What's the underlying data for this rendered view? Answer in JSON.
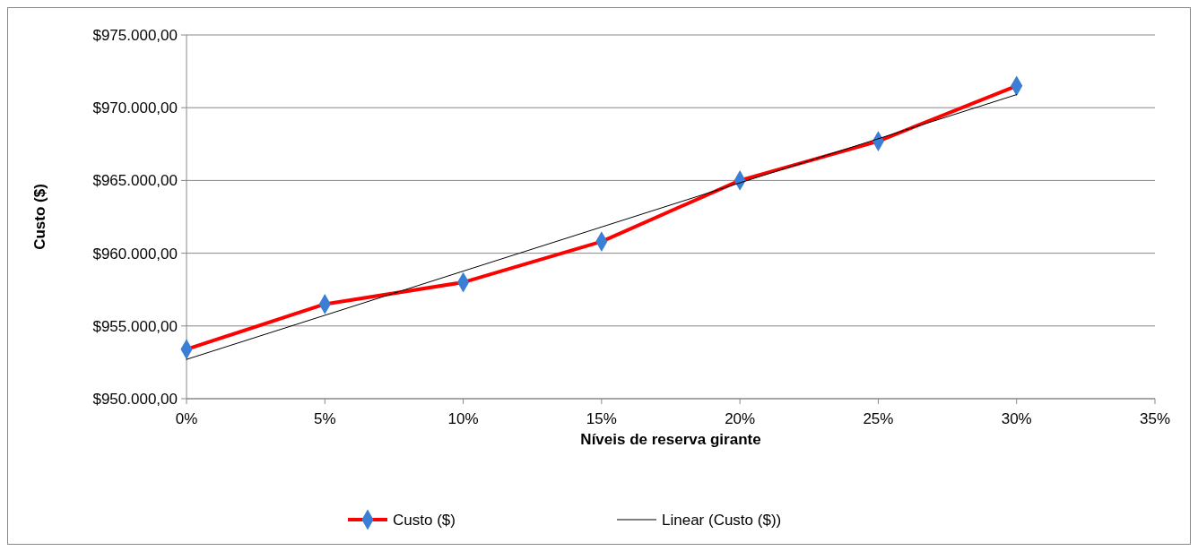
{
  "chart_data": {
    "type": "line",
    "xlabel": "Níveis de reserva girante",
    "ylabel": "Custo ($)",
    "x": [
      0,
      5,
      10,
      15,
      20,
      25,
      30
    ],
    "xlim": [
      0,
      35
    ],
    "xticks": [
      {
        "value": 0,
        "label": "0%"
      },
      {
        "value": 5,
        "label": "5%"
      },
      {
        "value": 10,
        "label": "10%"
      },
      {
        "value": 15,
        "label": "15%"
      },
      {
        "value": 20,
        "label": "20%"
      },
      {
        "value": 25,
        "label": "25%"
      },
      {
        "value": 30,
        "label": "30%"
      },
      {
        "value": 35,
        "label": "35%"
      }
    ],
    "ylim": [
      950000,
      975000
    ],
    "yticks": [
      {
        "value": 950000,
        "label": "$950.000,00"
      },
      {
        "value": 955000,
        "label": "$955.000,00"
      },
      {
        "value": 960000,
        "label": "$960.000,00"
      },
      {
        "value": 965000,
        "label": "$965.000,00"
      },
      {
        "value": 970000,
        "label": "$970.000,00"
      },
      {
        "value": 975000,
        "label": "$975.000,00"
      }
    ],
    "grid": "y",
    "legend": "bottom",
    "series": [
      {
        "name": "Custo ($)",
        "color": "#ff0000",
        "marker": "diamond",
        "colors": [
          "#3a7fd5",
          "#3a7fd5",
          "#3a7fd5",
          "#3a7fd5",
          "#3a7fd5",
          "#3a7fd5",
          "#3a7fd5"
        ],
        "values": [
          953400,
          956500,
          958000,
          960800,
          965000,
          967700,
          971500
        ]
      },
      {
        "name": "Linear (Custo ($))",
        "color": "#000000",
        "marker": "none",
        "x": [
          0,
          30
        ],
        "values": [
          952700,
          970900
        ]
      }
    ]
  }
}
